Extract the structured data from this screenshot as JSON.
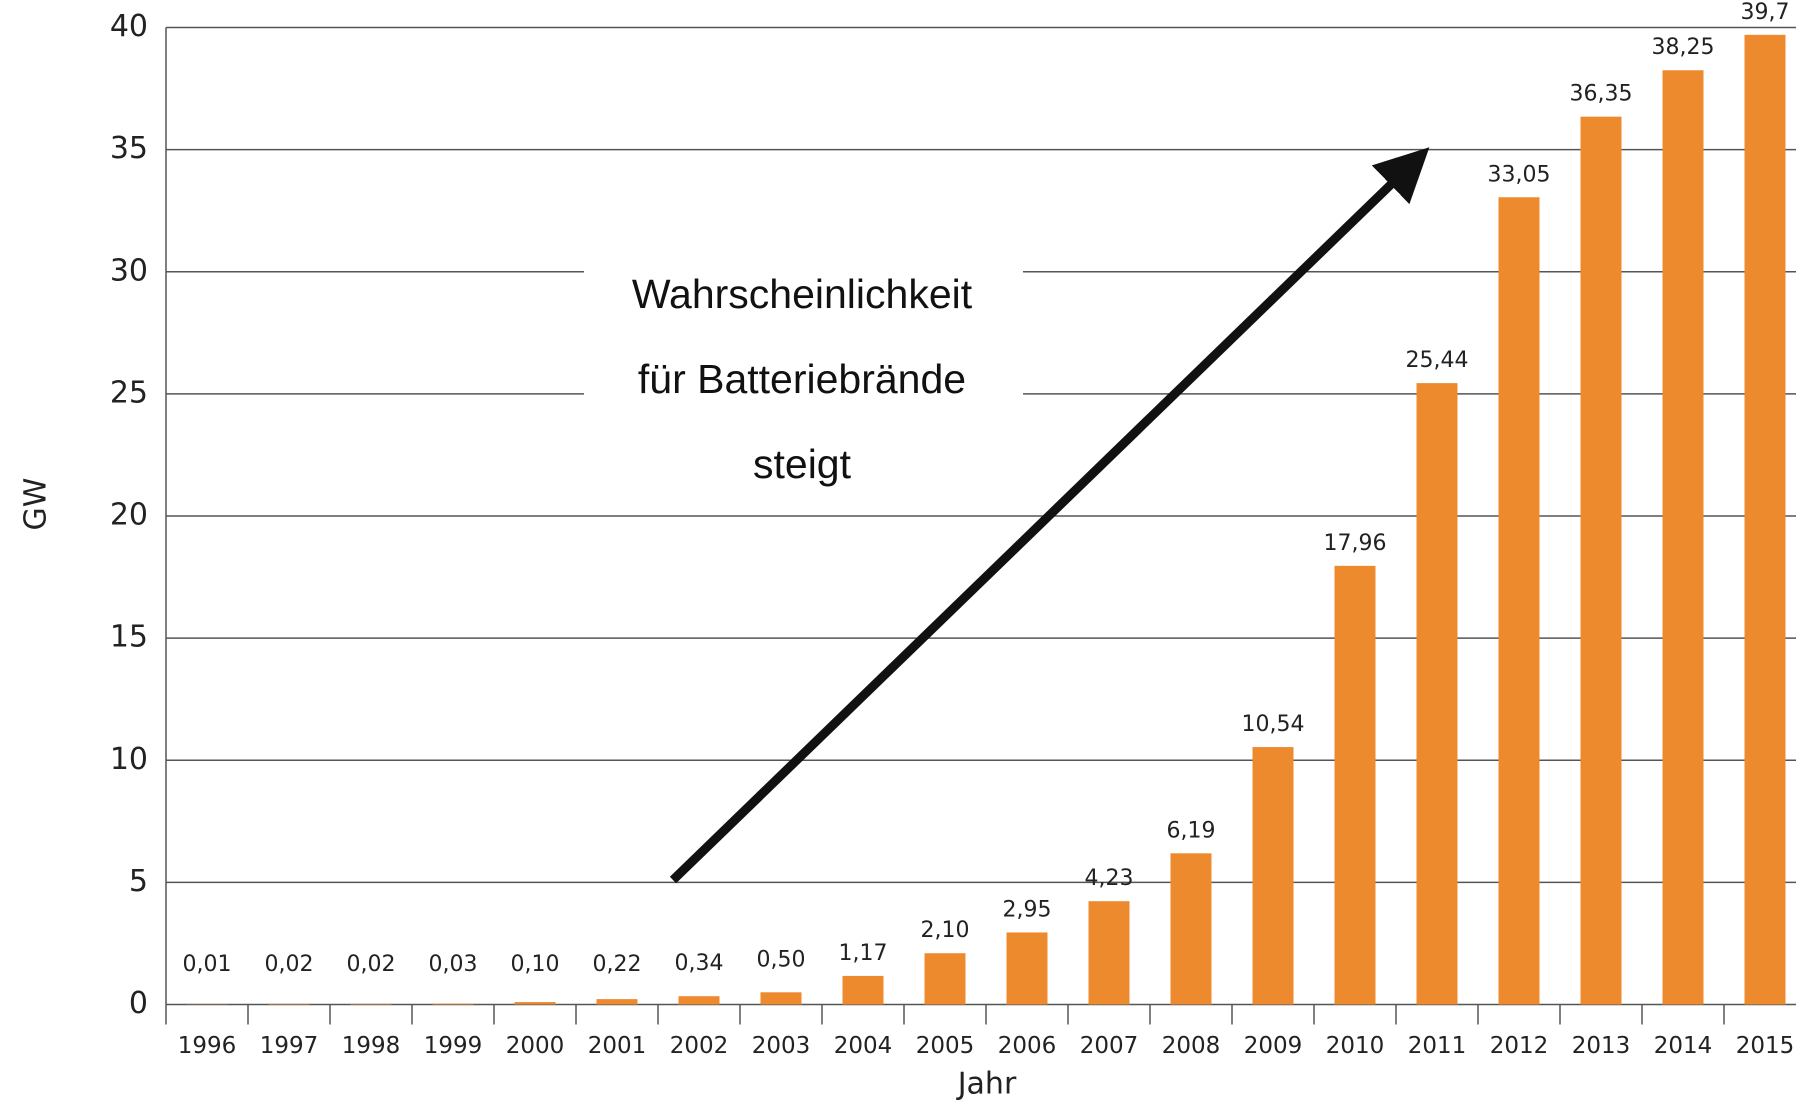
{
  "chart_data": {
    "type": "bar",
    "categories": [
      "1996",
      "1997",
      "1998",
      "1999",
      "2000",
      "2001",
      "2002",
      "2003",
      "2004",
      "2005",
      "2006",
      "2007",
      "2008",
      "2009",
      "2010",
      "2011",
      "2012",
      "2013",
      "2014",
      "2015"
    ],
    "values": [
      0.01,
      0.02,
      0.02,
      0.03,
      0.1,
      0.22,
      0.34,
      0.5,
      1.17,
      2.1,
      2.95,
      4.23,
      6.19,
      10.54,
      17.96,
      25.44,
      33.05,
      36.35,
      38.25,
      39.7
    ],
    "value_labels": [
      "0,01",
      "0,02",
      "0,02",
      "0,03",
      "0,10",
      "0,22",
      "0,34",
      "0,50",
      "1,17",
      "2,10",
      "2,95",
      "4,23",
      "6,19",
      "10,54",
      "17,96",
      "25,44",
      "33,05",
      "36,35",
      "38,25",
      "39,7"
    ],
    "color": "#ee8a2e",
    "xlabel": "Jahr",
    "ylabel": "GW",
    "ylim": [
      0,
      40
    ],
    "yticks": [
      0,
      5,
      10,
      15,
      20,
      25,
      30,
      35,
      40
    ],
    "grid": true,
    "annotation": [
      "Wahrscheinlichkeit",
      "für Batteriebrände",
      "steigt"
    ]
  }
}
